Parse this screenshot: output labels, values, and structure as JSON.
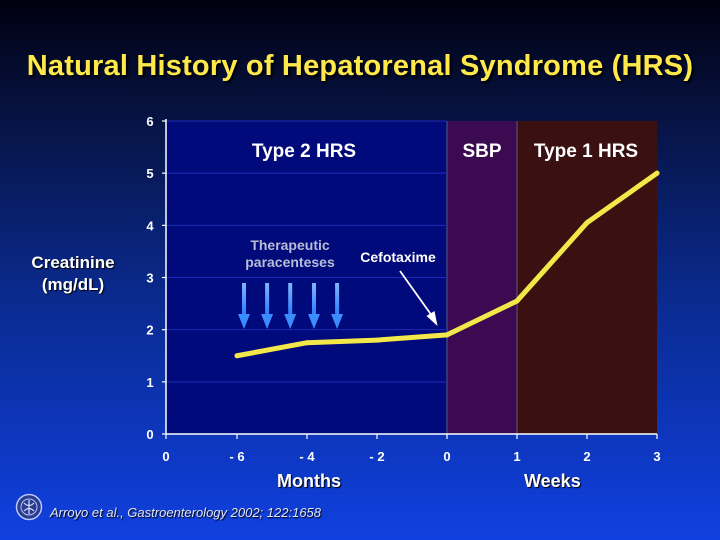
{
  "chart_data": {
    "type": "line",
    "title": "Natural History of Hepatorenal Syndrome (HRS)",
    "ylabel": "Creatinine (mg/dL)",
    "ylim": [
      0,
      6
    ],
    "yticks": [
      "0",
      "1",
      "2",
      "3",
      "4",
      "5",
      "6"
    ],
    "xticks": [
      "0",
      "- 6",
      "- 4",
      "- 2",
      "0",
      "1",
      "2",
      "3"
    ],
    "xgroups": [
      "Months",
      "Weeks"
    ],
    "regions": [
      {
        "label": "Type 2 HRS",
        "from_tick": 0,
        "to_tick": 4,
        "color": "#000a7a"
      },
      {
        "label": "SBP",
        "from_tick": 4,
        "to_tick": 5,
        "color": "#3c0a50"
      },
      {
        "label": "Type 1 HRS",
        "from_tick": 5,
        "to_tick": 7,
        "color": "#3a1010"
      }
    ],
    "series": [
      {
        "color": "#f2e84a",
        "points": [
          {
            "tick": 1,
            "y": 1.5
          },
          {
            "tick": 2,
            "y": 1.75
          },
          {
            "tick": 3,
            "y": 1.8
          },
          {
            "tick": 4,
            "y": 1.9
          },
          {
            "tick": 5,
            "y": 2.55
          },
          {
            "tick": 6,
            "y": 4.05
          },
          {
            "tick": 7,
            "y": 5.0
          }
        ]
      }
    ],
    "annotations": {
      "paracenteses": "Therapeutic paracenteses",
      "paracenteses_line1": "Therapeutic",
      "paracenteses_line2": "paracenteses",
      "paracenteses_arrow_ticks": [
        1.1,
        1.43,
        1.76,
        2.1,
        2.43
      ],
      "cefotaxime": "Cefotaxime",
      "cefotaxime_tick": 3.85
    }
  },
  "ylabel_line1": "Creatinine",
  "ylabel_line2": "(mg/dL)",
  "citation": "Arroyo et al., Gastroenterology 2002; 122:1658"
}
